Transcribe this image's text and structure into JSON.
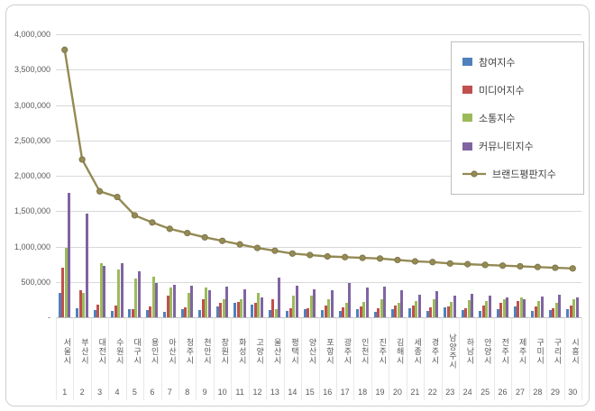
{
  "chart_data": {
    "type": "bar+line",
    "title": "",
    "xlabel": "",
    "ylabel": "",
    "ylim": [
      0,
      4000000
    ],
    "ytick_step": 500000,
    "ytick_labels": [
      "-",
      "500,000",
      "1,000,000",
      "1,500,000",
      "2,000,000",
      "2,500,000",
      "3,000,000",
      "3,500,000",
      "4,000,000"
    ],
    "grid": true,
    "legend_position": "top-right",
    "categories": [
      "서울시",
      "부산시",
      "대전시",
      "수원시",
      "대구시",
      "용인시",
      "아산시",
      "청주시",
      "천안시",
      "창원시",
      "화성시",
      "고양시",
      "울산시",
      "평택시",
      "양산시",
      "포항시",
      "광주시",
      "인천시",
      "진주시",
      "김해시",
      "세종시",
      "경주시",
      "남양주시",
      "하남시",
      "안양시",
      "전주시",
      "제주시",
      "구미시",
      "구리시",
      "시흥시"
    ],
    "ranks": [
      "1",
      "2",
      "3",
      "4",
      "5",
      "6",
      "7",
      "8",
      "9",
      "10",
      "11",
      "12",
      "13",
      "14",
      "15",
      "16",
      "17",
      "18",
      "19",
      "20",
      "21",
      "22",
      "23",
      "24",
      "25",
      "26",
      "27",
      "28",
      "29",
      "30"
    ],
    "series": [
      {
        "name": "참여지수",
        "type": "bar",
        "color": "#4F81BD",
        "values": [
          350000,
          130000,
          100000,
          90000,
          110000,
          100000,
          80000,
          120000,
          100000,
          150000,
          200000,
          180000,
          100000,
          90000,
          120000,
          100000,
          90000,
          120000,
          80000,
          110000,
          130000,
          90000,
          140000,
          100000,
          90000,
          110000,
          150000,
          90000,
          100000,
          110000
        ]
      },
      {
        "name": "미디어지수",
        "type": "bar",
        "color": "#C0504D",
        "values": [
          700000,
          380000,
          180000,
          160000,
          120000,
          150000,
          300000,
          140000,
          250000,
          200000,
          220000,
          200000,
          250000,
          130000,
          130000,
          160000,
          140000,
          150000,
          130000,
          160000,
          170000,
          140000,
          150000,
          130000,
          160000,
          200000,
          230000,
          150000,
          130000,
          160000
        ]
      },
      {
        "name": "소통지수",
        "type": "bar",
        "color": "#9BBB59",
        "values": [
          980000,
          350000,
          760000,
          680000,
          550000,
          570000,
          420000,
          350000,
          420000,
          260000,
          250000,
          350000,
          120000,
          300000,
          300000,
          250000,
          200000,
          220000,
          250000,
          200000,
          230000,
          250000,
          220000,
          240000,
          230000,
          250000,
          280000,
          230000,
          200000,
          260000
        ]
      },
      {
        "name": "커뮤니티지수",
        "type": "bar",
        "color": "#8064A2",
        "values": [
          1760000,
          1470000,
          730000,
          770000,
          650000,
          480000,
          460000,
          450000,
          380000,
          430000,
          400000,
          280000,
          560000,
          450000,
          390000,
          380000,
          480000,
          420000,
          430000,
          380000,
          320000,
          370000,
          300000,
          330000,
          310000,
          280000,
          250000,
          290000,
          320000,
          280000
        ]
      },
      {
        "name": "브랜드평판지수",
        "type": "line",
        "color": "#948A54",
        "values": [
          3780000,
          2230000,
          1780000,
          1700000,
          1440000,
          1340000,
          1250000,
          1190000,
          1130000,
          1080000,
          1030000,
          980000,
          940000,
          900000,
          880000,
          860000,
          850000,
          840000,
          830000,
          810000,
          790000,
          780000,
          760000,
          750000,
          740000,
          730000,
          720000,
          710000,
          700000,
          690000
        ]
      }
    ]
  }
}
